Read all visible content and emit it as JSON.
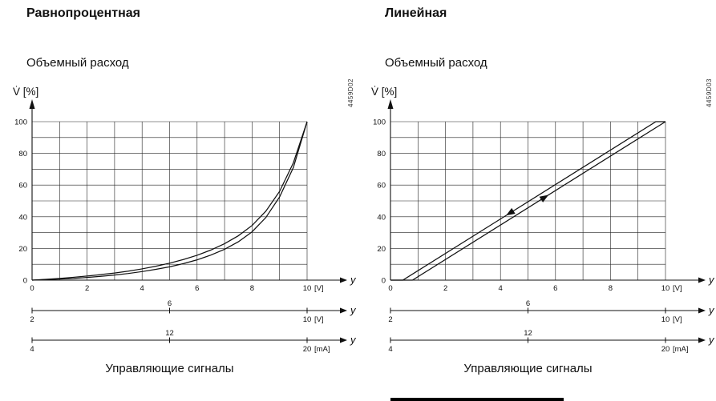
{
  "panels": [
    {
      "title": "Равнопроцентная",
      "subtitle": "Объемный расход",
      "side_code": "4459D02",
      "caption": "Управляющие сигналы"
    },
    {
      "title": "Линейная",
      "subtitle": "Объемный расход",
      "side_code": "4459D03",
      "caption": "Управляющие сигналы"
    }
  ],
  "chart_data": [
    {
      "type": "line",
      "title": "Равнопроцентная",
      "ylabel": "V̇ [%]",
      "xlabel": "Управляющие сигналы",
      "xlim": [
        0,
        10
      ],
      "ylim": [
        0,
        100
      ],
      "x_grid": 1,
      "y_grid": 10,
      "x_ticks": [
        0,
        2,
        4,
        6,
        8,
        10
      ],
      "y_ticks": [
        0,
        20,
        40,
        60,
        80,
        100
      ],
      "x_unit": "[V]",
      "arrow_label": "y",
      "grid": true,
      "legend": "none",
      "series": [
        {
          "name": "equal-percentage-curve-lower",
          "points": [
            [
              0,
              0
            ],
            [
              0.5,
              0.3
            ],
            [
              1,
              0.7
            ],
            [
              1.5,
              1.1
            ],
            [
              2,
              1.7
            ],
            [
              2.5,
              2.4
            ],
            [
              3,
              3.2
            ],
            [
              3.5,
              4.2
            ],
            [
              4,
              5.4
            ],
            [
              4.5,
              6.8
            ],
            [
              5,
              8.4
            ],
            [
              5.5,
              10.4
            ],
            [
              6,
              12.8
            ],
            [
              6.5,
              15.8
            ],
            [
              7,
              19.5
            ],
            [
              7.5,
              24.2
            ],
            [
              8,
              30.5
            ],
            [
              8.5,
              39.5
            ],
            [
              9,
              52.5
            ],
            [
              9.5,
              71
            ],
            [
              10,
              100
            ]
          ]
        },
        {
          "name": "equal-percentage-curve-upper",
          "points": [
            [
              0,
              0
            ],
            [
              0.5,
              0.5
            ],
            [
              1,
              1.1
            ],
            [
              1.5,
              1.8
            ],
            [
              2,
              2.6
            ],
            [
              2.5,
              3.5
            ],
            [
              3,
              4.5
            ],
            [
              3.5,
              5.7
            ],
            [
              4,
              7.1
            ],
            [
              4.5,
              8.8
            ],
            [
              5,
              10.7
            ],
            [
              5.5,
              13.0
            ],
            [
              6,
              15.7
            ],
            [
              6.5,
              19.0
            ],
            [
              7,
              23.0
            ],
            [
              7.5,
              28.0
            ],
            [
              8,
              34.5
            ],
            [
              8.5,
              43.5
            ],
            [
              9,
              56.0
            ],
            [
              9.5,
              74.0
            ],
            [
              10,
              100
            ]
          ]
        }
      ],
      "annotations": [],
      "extra_axes": [
        {
          "labels": [
            "2",
            "6",
            "10"
          ],
          "unit": "[V]",
          "arrow_label": "y"
        },
        {
          "labels": [
            "4",
            "12",
            "20"
          ],
          "unit": "[mA]",
          "arrow_label": "y"
        }
      ]
    },
    {
      "type": "line",
      "title": "Линейная",
      "ylabel": "V̇ [%]",
      "xlabel": "Управляющие сигналы",
      "xlim": [
        0,
        10
      ],
      "ylim": [
        0,
        100
      ],
      "x_grid": 1,
      "y_grid": 10,
      "x_ticks": [
        0,
        2,
        4,
        6,
        8,
        10
      ],
      "y_ticks": [
        0,
        20,
        40,
        60,
        80,
        100
      ],
      "x_unit": "[V]",
      "arrow_label": "y",
      "grid": true,
      "legend": "none",
      "series": [
        {
          "name": "linear-falling-line",
          "points": [
            [
              0,
              0
            ],
            [
              0.45,
              0
            ],
            [
              9.65,
              100
            ],
            [
              10,
              100
            ]
          ]
        },
        {
          "name": "linear-rising-line",
          "points": [
            [
              0,
              0
            ],
            [
              0.8,
              0
            ],
            [
              10,
              100
            ]
          ]
        }
      ],
      "annotations": [
        {
          "series": 0,
          "x": 4.35,
          "reverse": true
        },
        {
          "series": 1,
          "x": 5.6,
          "reverse": false
        }
      ],
      "extra_axes": [
        {
          "labels": [
            "2",
            "6",
            "10"
          ],
          "unit": "[V]",
          "arrow_label": "y"
        },
        {
          "labels": [
            "4",
            "12",
            "20"
          ],
          "unit": "[mA]",
          "arrow_label": "y"
        }
      ]
    }
  ]
}
